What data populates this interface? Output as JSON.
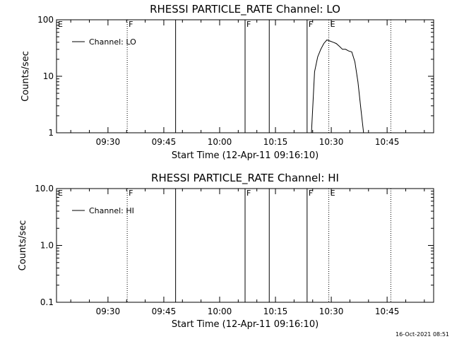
{
  "chart_data": [
    {
      "type": "line",
      "title": "RHESSI PARTICLE_RATE Channel: LO",
      "xlabel": "Start Time (12-Apr-11 09:16:10)",
      "ylabel": "Counts/sec",
      "yscale": "log",
      "ylim": [
        1,
        100
      ],
      "xlim": [
        "09:16:10",
        "10:57:30"
      ],
      "x_ticks": [
        "09:30",
        "09:45",
        "10:00",
        "10:15",
        "10:30",
        "10:45"
      ],
      "y_ticks": [
        "1",
        "10",
        "100"
      ],
      "legend": {
        "entries": [
          "Channel: LO"
        ],
        "placement": "top-left"
      },
      "series": [
        {
          "name": "Channel: LO",
          "x": [
            "10:24:40",
            "10:25:30",
            "10:26:20",
            "10:27:10",
            "10:28:00",
            "10:28:50",
            "10:29:40",
            "10:30:30",
            "10:31:20",
            "10:32:10",
            "10:33:00",
            "10:33:50",
            "10:34:40",
            "10:35:30",
            "10:36:20",
            "10:37:10",
            "10:38:00",
            "10:38:40"
          ],
          "y": [
            1,
            12,
            22,
            30,
            38,
            44,
            42,
            40,
            38,
            34,
            30,
            30,
            28,
            27,
            18,
            8,
            2.5,
            1
          ]
        }
      ],
      "markers": [
        {
          "label": "E",
          "time": "09:16:10",
          "style": "dotted"
        },
        {
          "label": "F",
          "time": "09:35:10",
          "style": "dotted"
        },
        {
          "label": "",
          "time": "09:48:10",
          "style": "solid"
        },
        {
          "label": "F",
          "time": "10:06:50",
          "style": "solid"
        },
        {
          "label": "",
          "time": "10:13:20",
          "style": "solid"
        },
        {
          "label": "F",
          "time": "10:23:30",
          "style": "solid"
        },
        {
          "label": "E",
          "time": "10:29:20",
          "style": "dotted"
        },
        {
          "label": "",
          "time": "10:46:00",
          "style": "dotted"
        }
      ]
    },
    {
      "type": "line",
      "title": "RHESSI PARTICLE_RATE Channel: HI",
      "xlabel": "Start Time (12-Apr-11 09:16:10)",
      "ylabel": "Counts/sec",
      "yscale": "log",
      "ylim": [
        0.1,
        10
      ],
      "xlim": [
        "09:16:10",
        "10:57:30"
      ],
      "x_ticks": [
        "09:30",
        "09:45",
        "10:00",
        "10:15",
        "10:30",
        "10:45"
      ],
      "y_ticks": [
        "0.1",
        "1.0",
        "10.0"
      ],
      "legend": {
        "entries": [
          "Channel: HI"
        ],
        "placement": "top-left"
      },
      "series": [
        {
          "name": "Channel: HI",
          "x": [],
          "y": []
        }
      ],
      "markers": [
        {
          "label": "E",
          "time": "09:16:10",
          "style": "dotted"
        },
        {
          "label": "F",
          "time": "09:35:10",
          "style": "dotted"
        },
        {
          "label": "",
          "time": "09:48:10",
          "style": "solid"
        },
        {
          "label": "F",
          "time": "10:06:50",
          "style": "solid"
        },
        {
          "label": "",
          "time": "10:13:20",
          "style": "solid"
        },
        {
          "label": "F",
          "time": "10:23:30",
          "style": "solid"
        },
        {
          "label": "E",
          "time": "10:29:20",
          "style": "dotted"
        },
        {
          "label": "",
          "time": "10:46:00",
          "style": "dotted"
        }
      ]
    }
  ],
  "timestamp": "16-Oct-2021 08:51"
}
